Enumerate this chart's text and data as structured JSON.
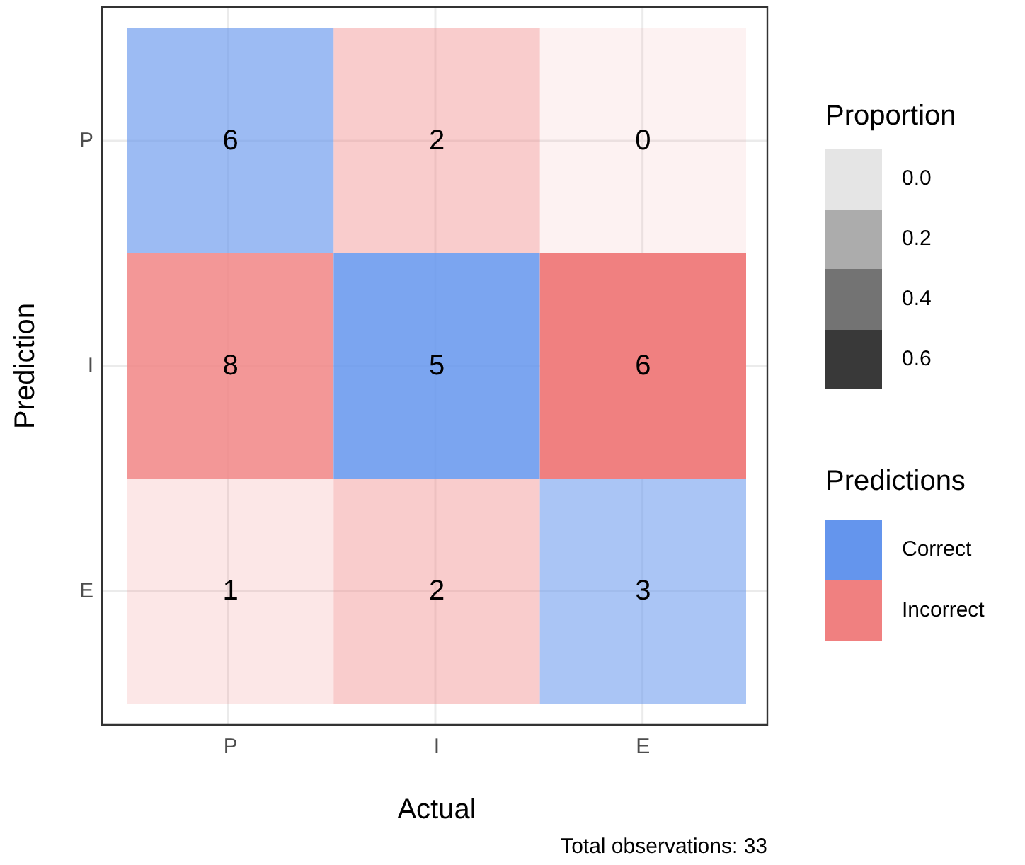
{
  "chart_data": {
    "type": "heatmap",
    "xlabel": "Actual",
    "ylabel": "Prediction",
    "categories": [
      "P",
      "I",
      "E"
    ],
    "y_categories": [
      "P",
      "I",
      "E"
    ],
    "cells": [
      [
        6,
        2,
        0
      ],
      [
        8,
        5,
        6
      ],
      [
        1,
        2,
        3
      ]
    ],
    "colors": [
      "#6495ed",
      "#f08080",
      "#f08080",
      "#f08080",
      "#6495ed",
      "#f08080",
      "#f08080",
      "#f08080",
      "#6495ed"
    ],
    "data_labels": true,
    "legend_title": "Predictions",
    "grid": true,
    "annotations": [
      "Proportion",
      "0.0",
      "0.2",
      "0.4",
      "0.6",
      "Correct",
      "Incorrect",
      "Total observations: 33"
    ]
  }
}
